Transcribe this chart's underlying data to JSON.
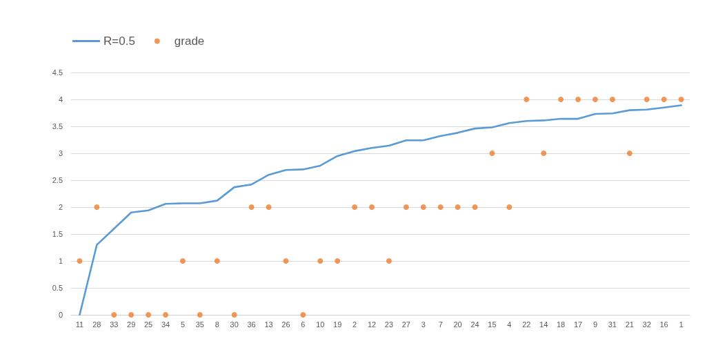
{
  "chart_data": {
    "type": "line",
    "categories": [
      "11",
      "28",
      "33",
      "29",
      "25",
      "34",
      "5",
      "35",
      "8",
      "30",
      "36",
      "13",
      "26",
      "6",
      "10",
      "19",
      "2",
      "12",
      "23",
      "27",
      "3",
      "7",
      "20",
      "24",
      "15",
      "4",
      "22",
      "14",
      "18",
      "17",
      "9",
      "31",
      "21",
      "32",
      "16",
      "1"
    ],
    "series": [
      {
        "name": "R=0.5",
        "type": "line",
        "color": "#5b9bd5",
        "marker": "none",
        "values": [
          0,
          1.3,
          1.6,
          1.9,
          1.94,
          2.06,
          2.07,
          2.07,
          2.12,
          2.37,
          2.42,
          2.6,
          2.69,
          2.7,
          2.77,
          2.95,
          3.04,
          3.1,
          3.14,
          3.24,
          3.24,
          3.32,
          3.38,
          3.46,
          3.48,
          3.56,
          3.6,
          3.61,
          3.64,
          3.64,
          3.73,
          3.74,
          3.8,
          3.81,
          3.85,
          3.89
        ]
      },
      {
        "name": "grade",
        "type": "scatter",
        "color": "#ed7d31",
        "marker": "circle",
        "values": [
          1,
          2,
          0,
          0,
          0,
          0,
          1,
          0,
          1,
          0,
          2,
          2,
          1,
          0,
          1,
          1,
          2,
          2,
          1,
          2,
          2,
          2,
          2,
          2,
          3,
          2,
          4,
          3,
          4,
          4,
          4,
          4,
          3,
          4,
          4,
          4
        ]
      }
    ],
    "ylim": [
      0,
      4.5
    ],
    "yticks": [
      0,
      0.5,
      1,
      1.5,
      2,
      2.5,
      3,
      3.5,
      4,
      4.5
    ],
    "grid": "y",
    "legend": "top left",
    "line_style": "solid"
  }
}
